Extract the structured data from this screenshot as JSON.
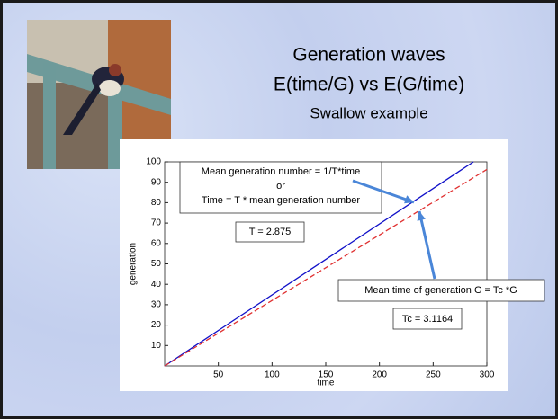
{
  "slide": {
    "title": "Generation waves",
    "subtitle": "E(time/G) vs E(G/time)",
    "caption": "Swallow example"
  },
  "chart_data": {
    "type": "line",
    "x_label": "time",
    "y_label": "generation",
    "x": [
      0,
      287.5,
      300
    ],
    "series": [
      {
        "name": "Mean generation number = 1/T*time",
        "color": "#1010c8",
        "line_style": "solid",
        "values": [
          0,
          100,
          null
        ]
      },
      {
        "name": "Mean time of generation G = Tc *G",
        "color": "#e03030",
        "line_style": "dashed",
        "values": [
          0,
          92.25,
          96.27
        ]
      }
    ],
    "xlim": [
      0,
      300
    ],
    "xticks": [
      50,
      100,
      150,
      200,
      250,
      300
    ],
    "ylim": [
      0,
      100
    ],
    "yticks": [
      10,
      20,
      30,
      40,
      50,
      60,
      70,
      80,
      90,
      100
    ],
    "grid": false,
    "annotations": [
      "Mean generation number = 1/T*time",
      "or",
      "Time = T * mean generation number",
      "T = 2.875",
      "Mean time of generation G = Tc *G",
      "Tc = 3.1164"
    ]
  }
}
